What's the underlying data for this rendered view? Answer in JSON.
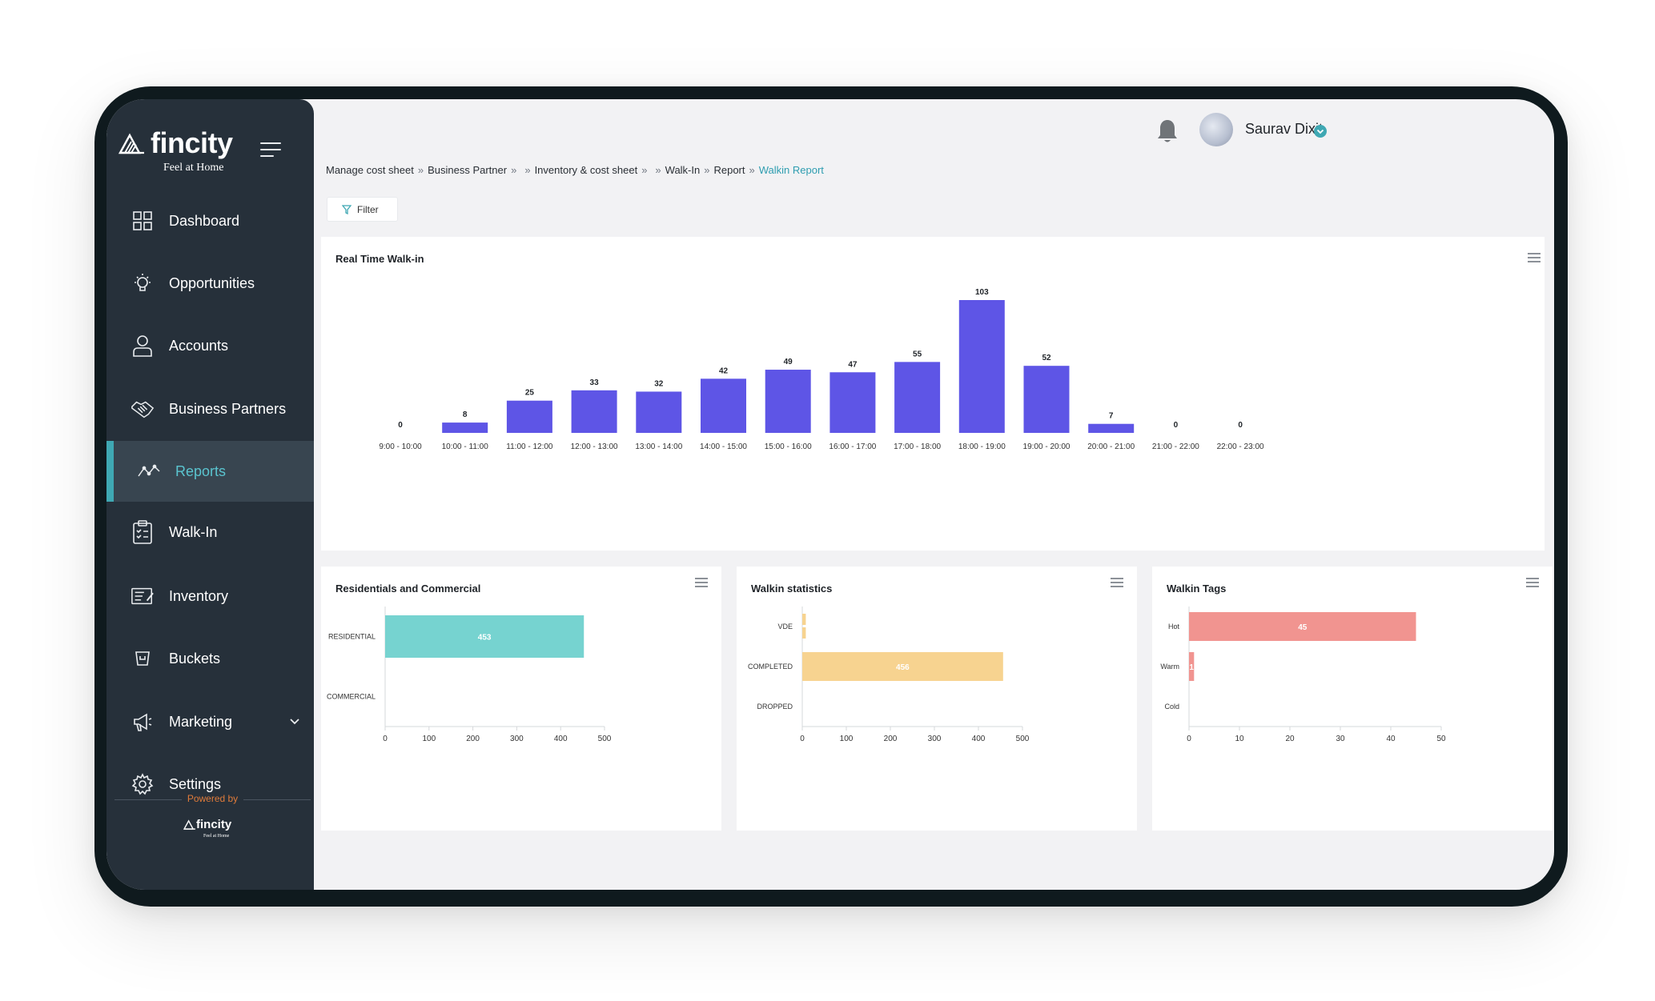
{
  "brand": {
    "name": "fincity",
    "tagline": "Feel at Home",
    "powered_by": "Powered by",
    "footer_name": "fincity",
    "footer_tagline": "Feel at Home"
  },
  "sidebar": {
    "items": [
      {
        "label": "Dashboard",
        "icon": "grid-icon"
      },
      {
        "label": "Opportunities",
        "icon": "lightbulb-icon"
      },
      {
        "label": "Accounts",
        "icon": "user-icon"
      },
      {
        "label": "Business Partners",
        "icon": "handshake-icon"
      },
      {
        "label": "Reports",
        "icon": "line-chart-icon",
        "active": true
      },
      {
        "label": "Walk-In",
        "icon": "clipboard-icon"
      },
      {
        "label": "Inventory",
        "icon": "inventory-icon"
      },
      {
        "label": "Buckets",
        "icon": "bucket-icon"
      },
      {
        "label": "Marketing",
        "icon": "megaphone-icon",
        "expandable": true
      },
      {
        "label": "Settings",
        "icon": "gear-icon"
      }
    ]
  },
  "header": {
    "user_name": "Saurav Dixit"
  },
  "breadcrumb": {
    "items": [
      "Manage cost sheet",
      "Business Partner",
      "",
      "Inventory & cost sheet",
      "",
      "Walk-In",
      "Report"
    ],
    "current": "Walkin Report"
  },
  "filter": {
    "label": "Filter"
  },
  "colors": {
    "accent": "#3fa8b3",
    "bar_main": "#5e55e6",
    "bar_res": "#76d3d0",
    "bar_stat": "#f7d390",
    "bar_tags": "#f19490",
    "sidebar_bg": "#26303a"
  },
  "chart_data": [
    {
      "type": "bar",
      "title": "Real Time Walk-in",
      "categories": [
        "9:00 - 10:00",
        "10:00 - 11:00",
        "11:00 - 12:00",
        "12:00 - 13:00",
        "13:00 - 14:00",
        "14:00 - 15:00",
        "15:00 - 16:00",
        "16:00 - 17:00",
        "17:00 - 18:00",
        "18:00 - 19:00",
        "19:00 - 20:00",
        "20:00 - 21:00",
        "21:00 - 22:00",
        "22:00 - 23:00"
      ],
      "values": [
        0,
        8,
        25,
        33,
        32,
        42,
        49,
        47,
        55,
        103,
        52,
        7,
        0,
        0
      ],
      "grid": false
    },
    {
      "type": "bar",
      "orientation": "horizontal",
      "title": "Residentials and Commercial",
      "categories": [
        "RESIDENTIAL",
        "COMMERCIAL"
      ],
      "values": [
        453,
        0
      ],
      "xlim": [
        0,
        500
      ],
      "xticks": [
        0,
        100,
        200,
        300,
        400,
        500
      ]
    },
    {
      "type": "bar",
      "orientation": "horizontal",
      "title": "Walkin statistics",
      "categories": [
        "VDE",
        "COMPLETED",
        "DROPPED"
      ],
      "values": [
        8,
        456,
        0
      ],
      "xlim": [
        0,
        500
      ],
      "xticks": [
        0,
        100,
        200,
        300,
        400,
        500
      ]
    },
    {
      "type": "bar",
      "orientation": "horizontal",
      "title": "Walkin Tags",
      "categories": [
        "Hot",
        "Warm",
        "Cold"
      ],
      "values": [
        45,
        1,
        0
      ],
      "xlim": [
        0,
        50
      ],
      "xticks": [
        0,
        10,
        20,
        30,
        40,
        50
      ]
    }
  ]
}
